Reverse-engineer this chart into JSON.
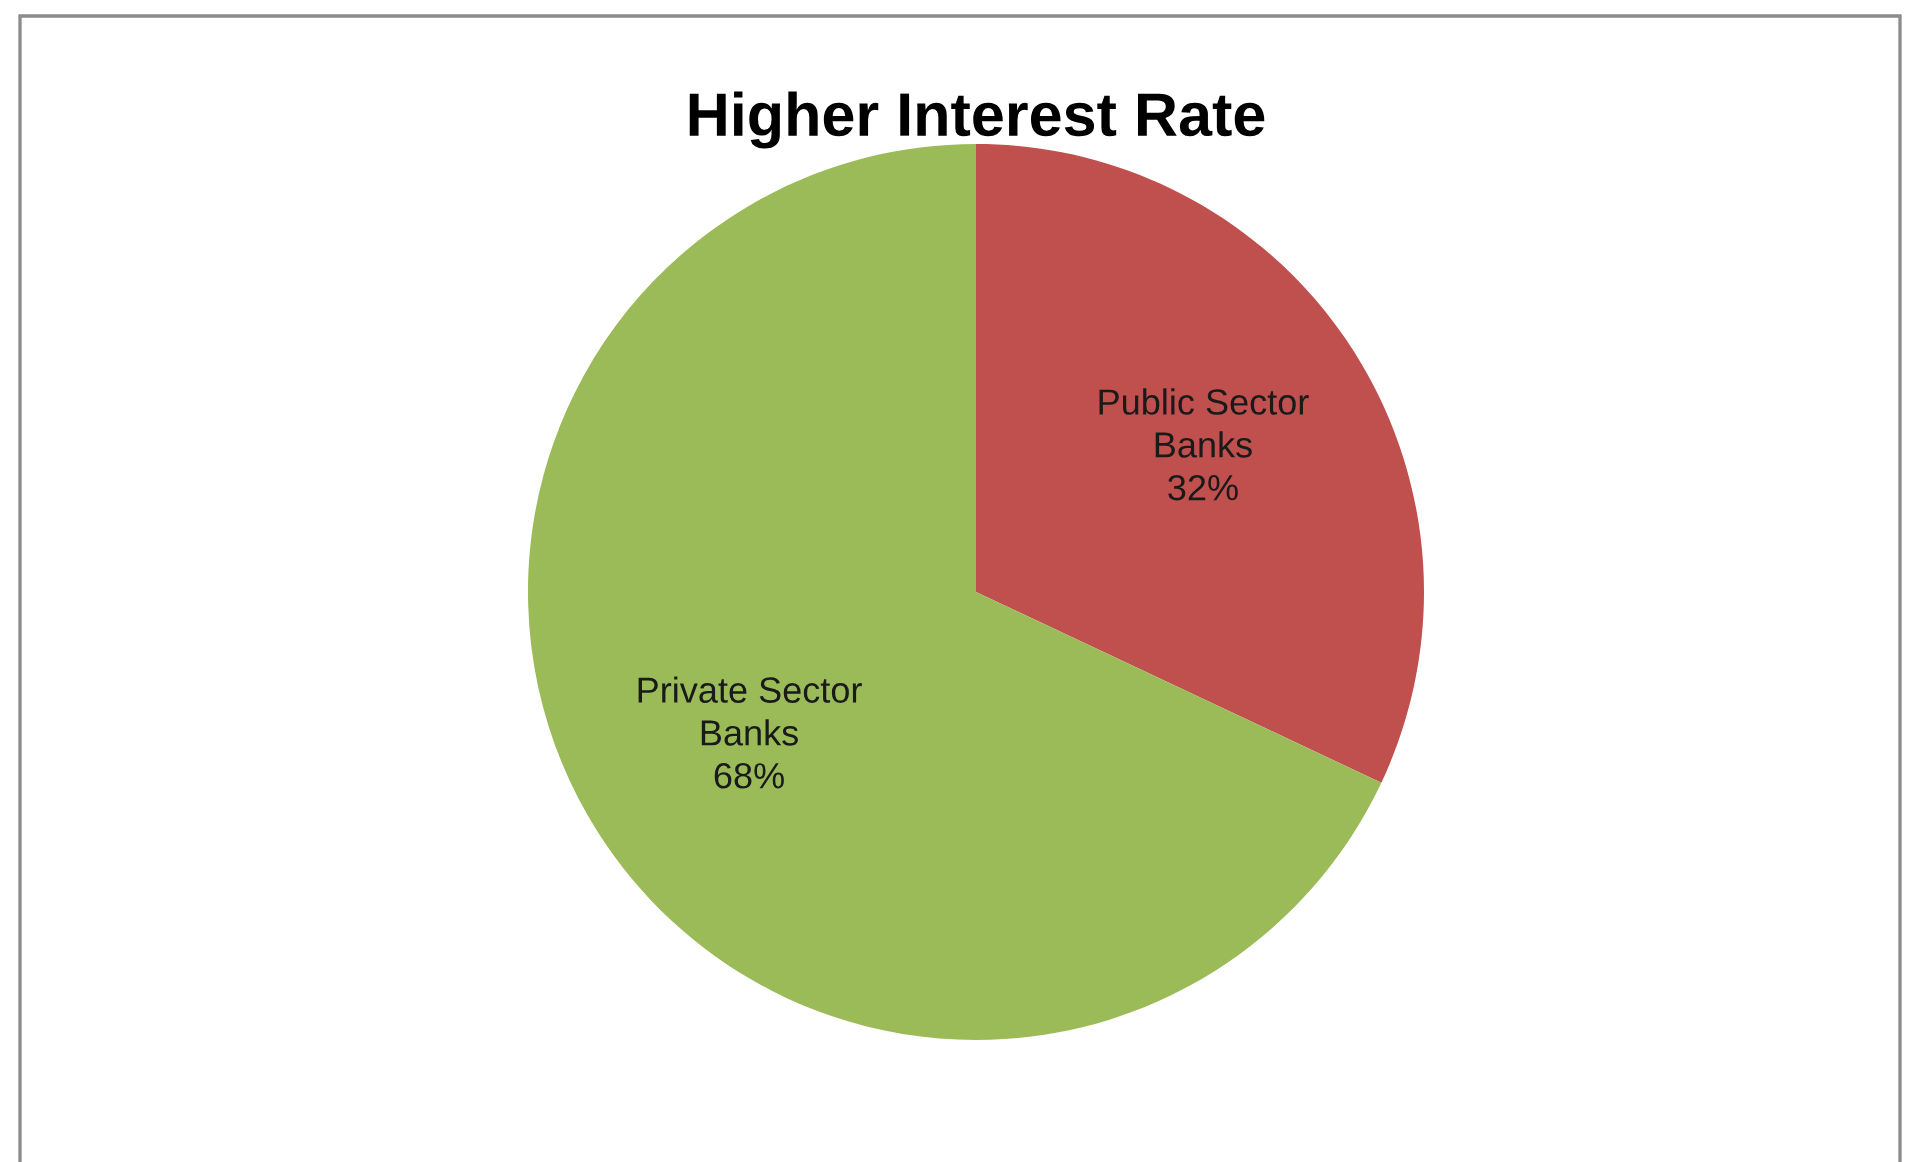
{
  "chart_data": {
    "type": "pie",
    "title": "Higher Interest Rate",
    "categories": [
      "Public Sector Banks",
      "Private Sector Banks"
    ],
    "values": [
      32,
      68
    ],
    "colors": [
      "#c0504d",
      "#9bbb59"
    ],
    "value_labels": [
      "32%",
      "68%"
    ]
  }
}
